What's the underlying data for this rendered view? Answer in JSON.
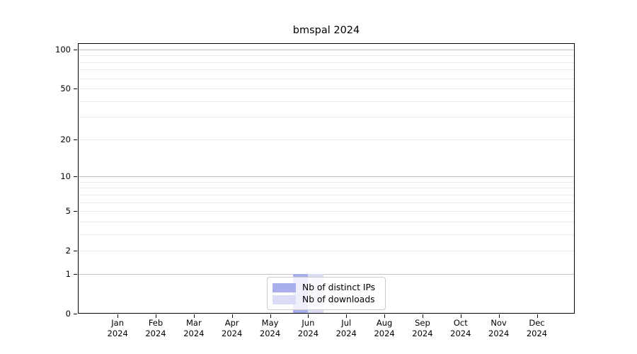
{
  "chart_data": {
    "type": "bar",
    "title": "bmspal 2024",
    "categories": [
      "Jan",
      "Feb",
      "Mar",
      "Apr",
      "May",
      "Jun",
      "Jul",
      "Aug",
      "Sep",
      "Oct",
      "Nov",
      "Dec"
    ],
    "x_year_label": "2024",
    "series": [
      {
        "name": "Nb of distinct IPs",
        "color": "#a9aeec",
        "values": [
          0,
          0,
          0,
          0,
          0,
          1,
          0,
          0,
          0,
          0,
          0,
          0
        ]
      },
      {
        "name": "Nb of downloads",
        "color": "#dbddf6",
        "values": [
          0,
          0,
          0,
          0,
          0,
          1,
          0,
          0,
          0,
          0,
          0,
          0
        ]
      }
    ],
    "y_axis": {
      "scale": "log1p",
      "tick_labels": [
        0,
        1,
        2,
        5,
        10,
        20,
        50,
        100
      ],
      "major_gridlines": [
        1,
        10,
        100
      ],
      "minor_gridlines": [
        2,
        3,
        4,
        5,
        6,
        7,
        8,
        9,
        20,
        30,
        40,
        50,
        60,
        70,
        80,
        90
      ],
      "ylim": [
        0,
        100
      ]
    },
    "grid": "horizontal",
    "legend": {
      "position": "bottom-center"
    }
  }
}
